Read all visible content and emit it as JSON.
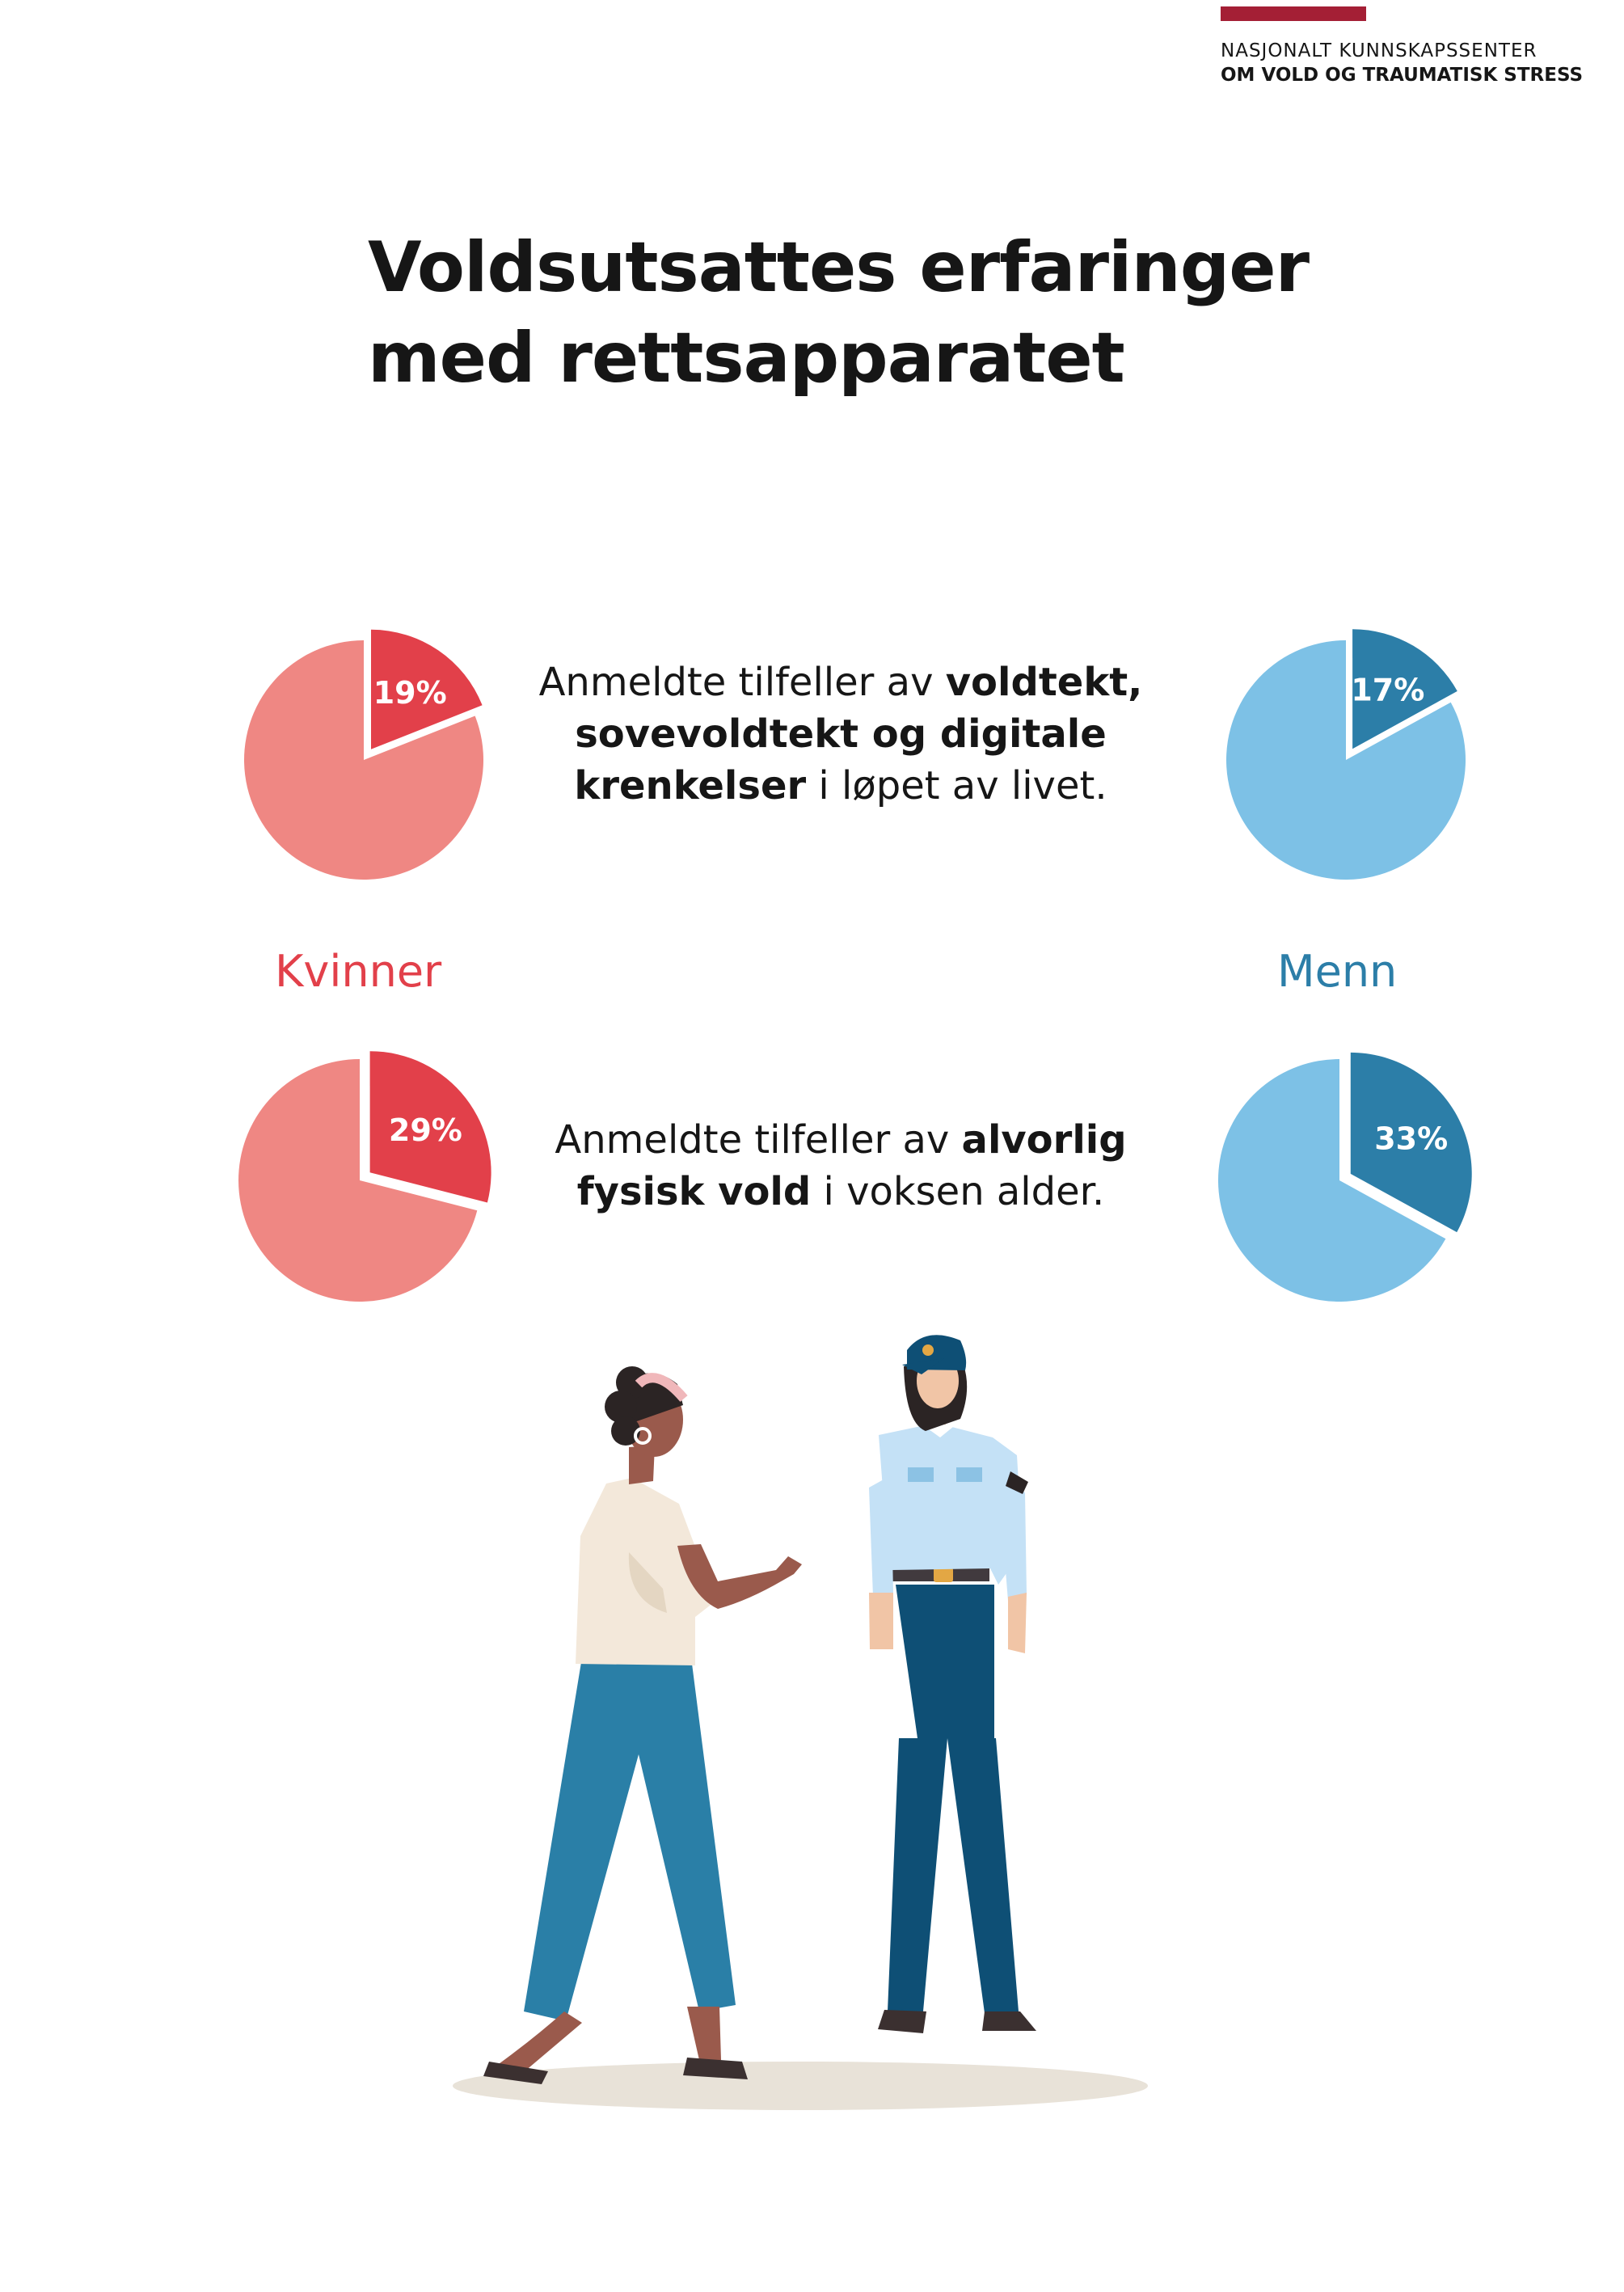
{
  "brand": {
    "line1": "NASJONALT KUNNSKAPSSENTER",
    "line2": "OM VOLD OG TRAUMATISK STRESS",
    "color": "#a41f35"
  },
  "title": "Voldsutsattes erfaringer med rettsapparatet",
  "statements": [
    {
      "parts": [
        {
          "text": "Anmeldte tilfeller av ",
          "bold": false
        },
        {
          "text": "voldtekt, sovevoldtekt og digitale krenkelser",
          "bold": true
        },
        {
          "text": " i løpet av livet.",
          "bold": false
        }
      ]
    },
    {
      "parts": [
        {
          "text": "Anmeldte tilfeller av ",
          "bold": false
        },
        {
          "text": "alvorlig fysisk vold",
          "bold": true
        },
        {
          "text": " i voksen alder.",
          "bold": false
        }
      ]
    }
  ],
  "groups": {
    "women": "Kvinner",
    "men": "Menn"
  },
  "colors": {
    "women_base": "#ef8783",
    "women_slice": "#e2404a",
    "men_base": "#7dc1e6",
    "men_slice": "#2c7ea8"
  },
  "chart_data": [
    {
      "type": "pie",
      "group": "Kvinner",
      "category": "Anmeldte tilfeller av voldtekt, sovevoldtekt og digitale krenkelser i løpet av livet.",
      "value": 19,
      "label": "19%"
    },
    {
      "type": "pie",
      "group": "Menn",
      "category": "Anmeldte tilfeller av voldtekt, sovevoldtekt og digitale krenkelser i løpet av livet.",
      "value": 17,
      "label": "17%"
    },
    {
      "type": "pie",
      "group": "Kvinner",
      "category": "Anmeldte tilfeller av alvorlig fysisk vold i voksen alder.",
      "value": 29,
      "label": "29%"
    },
    {
      "type": "pie",
      "group": "Menn",
      "category": "Anmeldte tilfeller av alvorlig fysisk vold i voksen alder.",
      "value": 33,
      "label": "33%"
    }
  ],
  "illustration": {
    "icons": [
      "woman-figure-icon",
      "police-officer-icon"
    ]
  }
}
